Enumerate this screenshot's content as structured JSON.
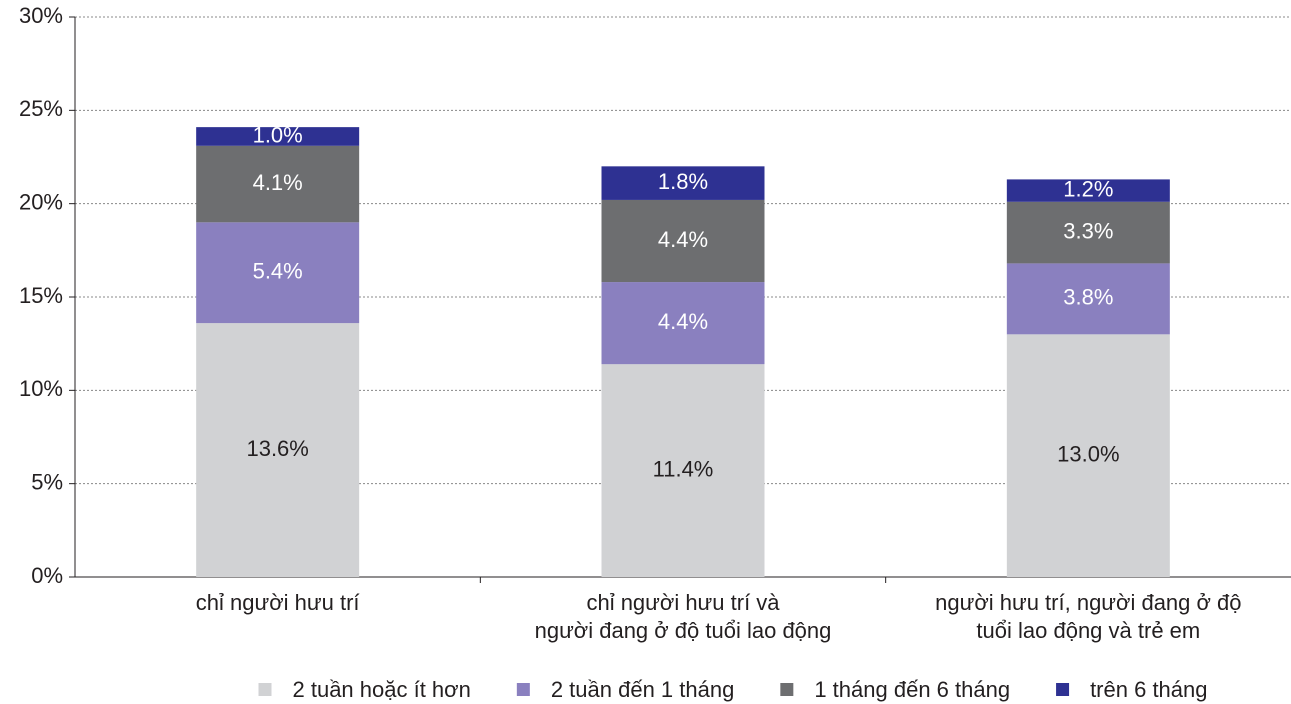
{
  "chart_data": {
    "type": "stacked_bar",
    "categories": [
      "chỉ người hưu trí",
      "chỉ người hưu trí và\nngười đang ở độ tuổi lao động",
      "người hưu trí, người đang ở độ\ntuổi lao động và trẻ em"
    ],
    "series": [
      {
        "name": "2 tuần hoặc ít hơn",
        "color": "#d1d2d4",
        "label_color": "#231f20",
        "values": [
          13.6,
          11.4,
          13.0
        ],
        "value_labels": [
          "13.6%",
          "11.4%",
          "13.0%"
        ]
      },
      {
        "name": "2 tuần đến 1 tháng",
        "color": "#8a80bf",
        "label_color": "#ffffff",
        "values": [
          5.4,
          4.4,
          3.8
        ],
        "value_labels": [
          "5.4%",
          "4.4%",
          "3.8%"
        ]
      },
      {
        "name": "1 tháng đến 6 tháng",
        "color": "#6d6e70",
        "label_color": "#ffffff",
        "values": [
          4.1,
          4.4,
          3.3
        ],
        "value_labels": [
          "4.1%",
          "4.4%",
          "3.3%"
        ]
      },
      {
        "name": "trên 6 tháng",
        "color": "#2e3192",
        "label_color": "#ffffff",
        "values": [
          1.0,
          1.8,
          1.2
        ],
        "value_labels": [
          "1.0%",
          "1.8%",
          "1.2%"
        ]
      }
    ],
    "ylim": [
      0,
      30
    ],
    "yticks": [
      {
        "value": 0,
        "label": "0%"
      },
      {
        "value": 5,
        "label": "5%"
      },
      {
        "value": 10,
        "label": "10%"
      },
      {
        "value": 15,
        "label": "15%"
      },
      {
        "value": 20,
        "label": "20%"
      },
      {
        "value": 25,
        "label": "25%"
      },
      {
        "value": 30,
        "label": "30%"
      }
    ],
    "grid": true,
    "legend": "bottom"
  }
}
